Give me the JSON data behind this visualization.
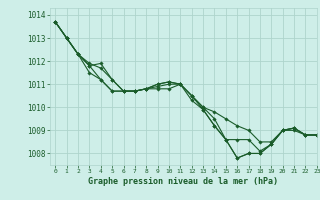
{
  "title": "Graphe pression niveau de la mer (hPa)",
  "bg_color": "#ceeee8",
  "grid_color": "#aed4cc",
  "line_color": "#1a5c2a",
  "text_color": "#1a5c2a",
  "xlim": [
    -0.5,
    23
  ],
  "ylim": [
    1007.5,
    1014.3
  ],
  "yticks": [
    1008,
    1009,
    1010,
    1011,
    1012,
    1013,
    1014
  ],
  "ytick_labels": [
    "1008",
    "1009",
    "1010",
    "1011",
    "1012",
    "1013",
    "1014"
  ],
  "xticks": [
    0,
    1,
    2,
    3,
    4,
    5,
    6,
    7,
    8,
    9,
    10,
    11,
    12,
    13,
    14,
    15,
    16,
    17,
    18,
    19,
    20,
    21,
    22,
    23
  ],
  "series": [
    [
      1013.7,
      1013.0,
      1012.3,
      1011.8,
      1011.2,
      1010.7,
      1010.7,
      1010.7,
      1010.8,
      1010.9,
      1011.0,
      1011.0,
      1010.5,
      1010.0,
      1009.5,
      1008.6,
      1008.6,
      1008.6,
      1008.1,
      1008.4,
      1009.0,
      1009.1,
      1008.8,
      1008.8
    ],
    [
      1013.7,
      1013.0,
      1012.3,
      1011.8,
      1011.9,
      1011.2,
      1010.7,
      1010.7,
      1010.8,
      1011.0,
      1011.1,
      1011.0,
      1010.5,
      1009.9,
      1009.2,
      1008.6,
      1007.8,
      1008.0,
      1008.0,
      1008.4,
      1009.0,
      1009.1,
      1008.8,
      1008.8
    ],
    [
      1013.7,
      1013.0,
      1012.3,
      1011.5,
      1011.2,
      1010.7,
      1010.7,
      1010.7,
      1010.8,
      1010.8,
      1010.8,
      1011.0,
      1010.3,
      1009.9,
      1009.2,
      1008.6,
      1007.8,
      1008.0,
      1008.0,
      1008.4,
      1009.0,
      1009.1,
      1008.8,
      1008.8
    ],
    [
      1013.7,
      1013.0,
      1012.3,
      1011.9,
      1011.7,
      1011.2,
      1010.7,
      1010.7,
      1010.8,
      1011.0,
      1011.1,
      1011.0,
      1010.5,
      1010.0,
      1009.8,
      1009.5,
      1009.2,
      1009.0,
      1008.5,
      1008.5,
      1009.0,
      1009.0,
      1008.8,
      1008.8
    ]
  ]
}
